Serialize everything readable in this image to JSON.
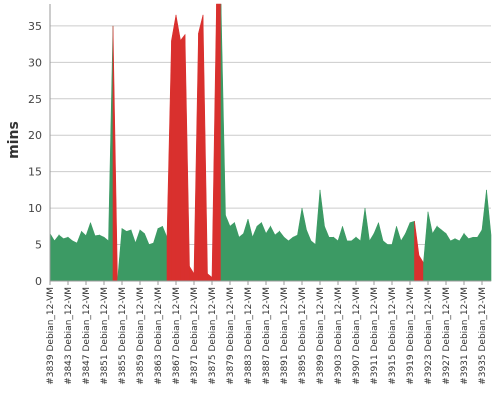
{
  "chart_data": {
    "type": "area",
    "ylabel": "mins",
    "ylim": [
      0,
      38
    ],
    "yticks": [
      0,
      5,
      10,
      15,
      20,
      25,
      30,
      35
    ],
    "grid": true,
    "colors": {
      "ok": "#3c9a64",
      "fail": "#d9302e"
    },
    "x_tick_labels": [
      "#3839 Debian_12-VM",
      "#3843 Debian_12-VM",
      "#3847 Debian_12-VM",
      "#3851 Debian_12-VM",
      "#3855 Debian_12-VM",
      "#3859 Debian_12-VM",
      "#3863 Debian_12-VM",
      "#3867 Debian_12-VM",
      "#3871 Debian_12-VM",
      "#3875 Debian_12-VM",
      "#3879 Debian_12-VM",
      "#3883 Debian_12-VM",
      "#3887 Debian_12-VM",
      "#3891 Debian_12-VM",
      "#3895 Debian_12-VM",
      "#3899 Debian_12-VM",
      "#3903 Debian_12-VM",
      "#3907 Debian_12-VM",
      "#3911 Debian_12-VM",
      "#3915 Debian_12-VM",
      "#3919 Debian_12-VM",
      "#3923 Debian_12-VM",
      "#3927 Debian_12-VM",
      "#3931 Debian_12-VM",
      "#3935 Debian_12-VM"
    ],
    "builds": [
      3839,
      3840,
      3841,
      3842,
      3843,
      3844,
      3845,
      3846,
      3847,
      3848,
      3849,
      3850,
      3851,
      3852,
      3853,
      3854,
      3855,
      3856,
      3857,
      3858,
      3859,
      3860,
      3861,
      3862,
      3863,
      3864,
      3865,
      3866,
      3867,
      3868,
      3869,
      3870,
      3871,
      3872,
      3873,
      3874,
      3875,
      3876,
      3877,
      3878,
      3879,
      3880,
      3881,
      3882,
      3883,
      3884,
      3885,
      3886,
      3887,
      3888,
      3889,
      3890,
      3891,
      3892,
      3893,
      3894,
      3895,
      3896,
      3897,
      3898,
      3899,
      3900,
      3901,
      3902,
      3903,
      3904,
      3905,
      3906,
      3907,
      3908,
      3909,
      3910,
      3911,
      3912,
      3913,
      3914,
      3915,
      3916,
      3917,
      3918,
      3919,
      3920,
      3921,
      3922,
      3923,
      3924,
      3925,
      3926,
      3927,
      3928,
      3929,
      3930,
      3931,
      3932,
      3933,
      3934,
      3935,
      3936,
      3937
    ],
    "values": [
      6.5,
      5.5,
      6.3,
      5.8,
      6.0,
      5.5,
      5.2,
      6.8,
      6.2,
      8.0,
      6.2,
      6.3,
      6.0,
      5.5,
      35.0,
      0.0,
      7.2,
      6.8,
      7.0,
      5.2,
      7.0,
      6.5,
      5.0,
      5.2,
      7.2,
      7.5,
      6.0,
      33.0,
      36.5,
      33.0,
      33.8,
      2.0,
      1.0,
      34.0,
      36.5,
      1.0,
      0.5,
      38.0,
      38.0,
      9.0,
      7.5,
      8.0,
      6.0,
      6.5,
      8.5,
      6.0,
      7.5,
      8.0,
      6.5,
      7.5,
      6.3,
      6.8,
      6.0,
      5.5,
      6.0,
      6.3,
      10.0,
      7.0,
      5.5,
      5.0,
      12.5,
      7.5,
      6.0,
      6.0,
      5.5,
      7.5,
      5.5,
      5.5,
      6.0,
      5.5,
      10.0,
      5.5,
      6.5,
      8.0,
      5.5,
      5.0,
      5.0,
      7.5,
      5.5,
      6.5,
      8.0,
      8.2,
      3.5,
      2.5,
      9.5,
      6.5,
      7.5,
      7.0,
      6.5,
      5.5,
      5.8,
      5.5,
      6.5,
      5.8,
      6.0,
      6.0,
      7.0,
      12.5,
      6.3
    ],
    "status": [
      "ok",
      "ok",
      "ok",
      "ok",
      "ok",
      "ok",
      "ok",
      "ok",
      "ok",
      "ok",
      "ok",
      "ok",
      "ok",
      "ok",
      "ok",
      "fail",
      "ok",
      "ok",
      "ok",
      "ok",
      "ok",
      "ok",
      "ok",
      "ok",
      "ok",
      "ok",
      "ok",
      "fail",
      "fail",
      "fail",
      "fail",
      "fail",
      "fail",
      "fail",
      "fail",
      "fail",
      "fail",
      "fail",
      "fail",
      "ok",
      "ok",
      "ok",
      "ok",
      "ok",
      "ok",
      "ok",
      "ok",
      "ok",
      "ok",
      "ok",
      "ok",
      "ok",
      "ok",
      "ok",
      "ok",
      "ok",
      "ok",
      "ok",
      "ok",
      "ok",
      "ok",
      "ok",
      "ok",
      "ok",
      "ok",
      "ok",
      "ok",
      "ok",
      "ok",
      "ok",
      "ok",
      "ok",
      "ok",
      "ok",
      "ok",
      "ok",
      "ok",
      "ok",
      "ok",
      "ok",
      "ok",
      "ok",
      "fail",
      "fail",
      "ok",
      "ok",
      "ok",
      "ok",
      "ok",
      "ok",
      "ok",
      "ok",
      "ok",
      "ok",
      "ok",
      "ok",
      "ok",
      "ok",
      "ok"
    ]
  }
}
